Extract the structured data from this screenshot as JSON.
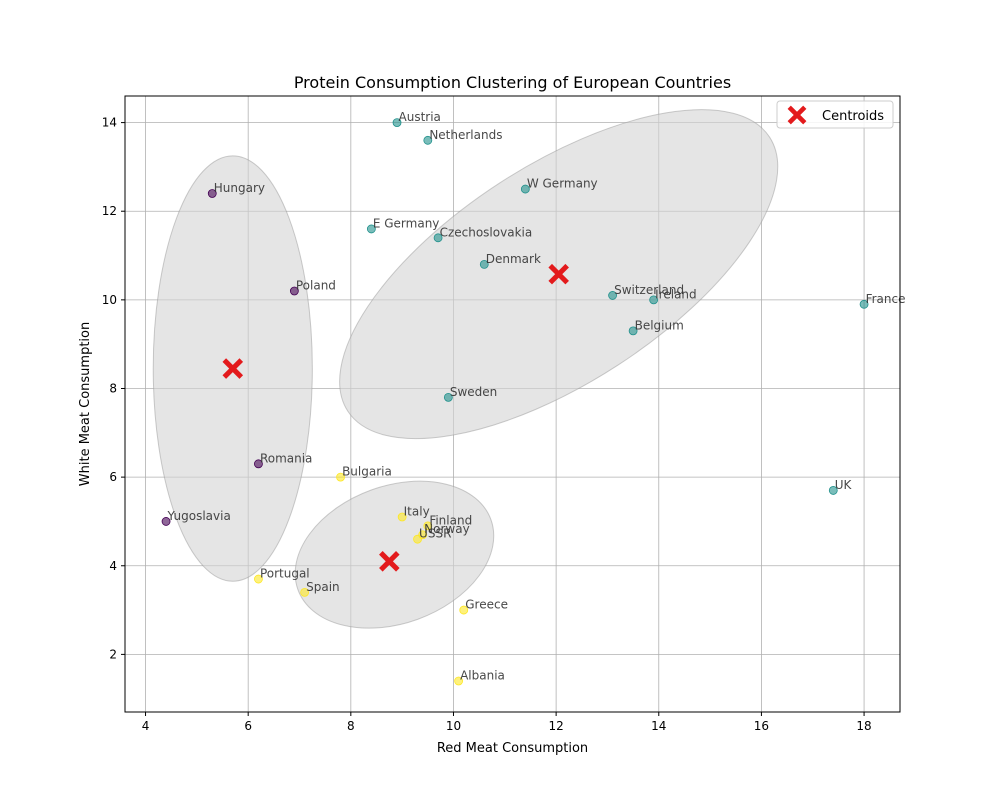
{
  "chart_data": {
    "type": "scatter",
    "title": "Protein Consumption Clustering of European Countries",
    "xlabel": "Red Meat Consumption",
    "ylabel": "White Meat Consumption",
    "xlim": [
      3.6,
      18.7
    ],
    "ylim": [
      0.7,
      14.6
    ],
    "xticks": [
      4,
      6,
      8,
      10,
      12,
      14,
      16,
      18
    ],
    "yticks": [
      2,
      4,
      6,
      8,
      10,
      12,
      14
    ],
    "grid": true,
    "legend": {
      "position": "top-right",
      "entries": [
        "Centroids"
      ]
    },
    "cluster_colors": {
      "purple": "#440154",
      "teal": "#21918c",
      "yellow": "#fde725"
    },
    "centroid_color": "#e31a1c",
    "ellipse_color": "#d3d3d3",
    "points": [
      {
        "label": "Austria",
        "x": 8.9,
        "y": 14.0,
        "cluster": "teal"
      },
      {
        "label": "Netherlands",
        "x": 9.5,
        "y": 13.6,
        "cluster": "teal"
      },
      {
        "label": "W Germany",
        "x": 11.4,
        "y": 12.5,
        "cluster": "teal"
      },
      {
        "label": "E Germany",
        "x": 8.4,
        "y": 11.6,
        "cluster": "teal"
      },
      {
        "label": "Czechoslovakia",
        "x": 9.7,
        "y": 11.4,
        "cluster": "teal"
      },
      {
        "label": "Denmark",
        "x": 10.6,
        "y": 10.8,
        "cluster": "teal"
      },
      {
        "label": "Switzerland",
        "x": 13.1,
        "y": 10.1,
        "cluster": "teal"
      },
      {
        "label": "Ireland",
        "x": 13.9,
        "y": 10.0,
        "cluster": "teal"
      },
      {
        "label": "Belgium",
        "x": 13.5,
        "y": 9.3,
        "cluster": "teal"
      },
      {
        "label": "France",
        "x": 18.0,
        "y": 9.9,
        "cluster": "teal"
      },
      {
        "label": "Sweden",
        "x": 9.9,
        "y": 7.8,
        "cluster": "teal"
      },
      {
        "label": "UK",
        "x": 17.4,
        "y": 5.7,
        "cluster": "teal"
      },
      {
        "label": "Hungary",
        "x": 5.3,
        "y": 12.4,
        "cluster": "purple"
      },
      {
        "label": "Poland",
        "x": 6.9,
        "y": 10.2,
        "cluster": "purple"
      },
      {
        "label": "Romania",
        "x": 6.2,
        "y": 6.3,
        "cluster": "purple"
      },
      {
        "label": "Yugoslavia",
        "x": 4.4,
        "y": 5.0,
        "cluster": "purple"
      },
      {
        "label": "Bulgaria",
        "x": 7.8,
        "y": 6.0,
        "cluster": "yellow"
      },
      {
        "label": "Italy",
        "x": 9.0,
        "y": 5.1,
        "cluster": "yellow"
      },
      {
        "label": "Finland",
        "x": 9.5,
        "y": 4.9,
        "cluster": "yellow"
      },
      {
        "label": "Norway",
        "x": 9.4,
        "y": 4.7,
        "cluster": "yellow"
      },
      {
        "label": "USSR",
        "x": 9.3,
        "y": 4.6,
        "cluster": "yellow"
      },
      {
        "label": "Portugal",
        "x": 6.2,
        "y": 3.7,
        "cluster": "yellow"
      },
      {
        "label": "Spain",
        "x": 7.1,
        "y": 3.4,
        "cluster": "yellow"
      },
      {
        "label": "Greece",
        "x": 10.2,
        "y": 3.0,
        "cluster": "yellow"
      },
      {
        "label": "Albania",
        "x": 10.1,
        "y": 1.4,
        "cluster": "yellow"
      }
    ],
    "centroids": [
      {
        "x": 5.7,
        "y": 8.45
      },
      {
        "x": 12.05,
        "y": 10.58
      },
      {
        "x": 8.75,
        "y": 4.1
      }
    ],
    "ellipses": [
      {
        "cx": 5.7,
        "cy": 8.45,
        "rx": 1.55,
        "ry": 4.8,
        "angle": 0
      },
      {
        "cx": 12.05,
        "cy": 10.58,
        "rx": 4.9,
        "ry": 2.45,
        "angle": -33
      },
      {
        "cx": 8.85,
        "cy": 4.25,
        "rx": 2.0,
        "ry": 1.55,
        "angle": -20
      }
    ]
  }
}
